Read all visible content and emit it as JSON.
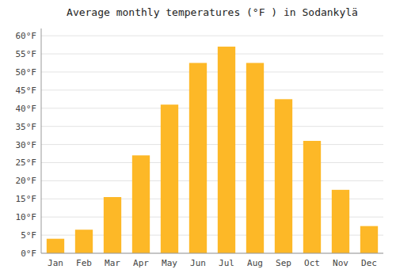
{
  "chart_data": {
    "type": "bar",
    "title": "Average monthly temperatures (°F ) in Sodankylä",
    "categories": [
      "Jan",
      "Feb",
      "Mar",
      "Apr",
      "May",
      "Jun",
      "Jul",
      "Aug",
      "Sep",
      "Oct",
      "Nov",
      "Dec"
    ],
    "values": [
      4,
      6.5,
      15.5,
      27,
      41,
      52.5,
      57,
      52.5,
      42.5,
      31,
      17.5,
      7.5
    ],
    "color": "#FDB827",
    "ylim": [
      0,
      62
    ],
    "yticks": [
      {
        "value": 0,
        "label": "0°F"
      },
      {
        "value": 5,
        "label": "5°F"
      },
      {
        "value": 10,
        "label": "10°F"
      },
      {
        "value": 15,
        "label": "15°F"
      },
      {
        "value": 20,
        "label": "20°F"
      },
      {
        "value": 25,
        "label": "25°F"
      },
      {
        "value": 30,
        "label": "30°F"
      },
      {
        "value": 35,
        "label": "35°F"
      },
      {
        "value": 40,
        "label": "40°F"
      },
      {
        "value": 45,
        "label": "45°F"
      },
      {
        "value": 50,
        "label": "50°F"
      },
      {
        "value": 55,
        "label": "55°F"
      },
      {
        "value": 60,
        "label": "60°F"
      }
    ],
    "grid": true
  }
}
